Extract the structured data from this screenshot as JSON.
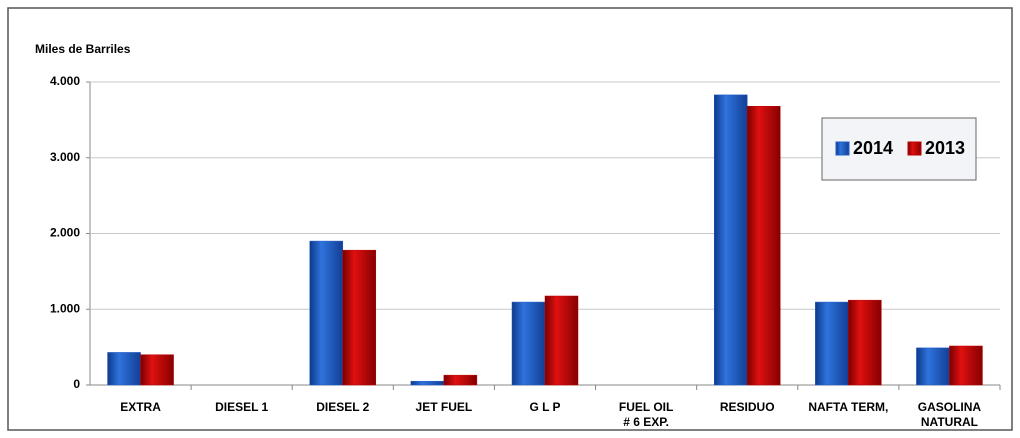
{
  "chart_data": {
    "type": "bar",
    "y_label": "Miles de Barriles",
    "categories": [
      "EXTRA",
      "DIESEL  1",
      "DIESEL 2",
      "JET FUEL",
      "G L P",
      "FUEL OIL\n# 6 EXP.",
      "RESIDUO",
      "NAFTA  TERM,",
      "GASOLINA\nNATURAL"
    ],
    "series": [
      {
        "name": "2014",
        "color": "#1f5cc4",
        "values": [
          430,
          0,
          1900,
          50,
          1095,
          0,
          3830,
          1095,
          490
        ]
      },
      {
        "name": "2013",
        "color": "#c00000",
        "values": [
          400,
          0,
          1780,
          130,
          1175,
          0,
          3680,
          1120,
          515
        ]
      }
    ],
    "ylim": [
      0,
      4000
    ],
    "yticks": [
      0,
      {
        "value": 1000,
        "label": "1.000"
      },
      {
        "value": 2000,
        "label": "2.000"
      },
      {
        "value": 3000,
        "label": "3.000"
      },
      {
        "value": 4000,
        "label": "4.000"
      }
    ],
    "grid": true,
    "legend": "upper right"
  }
}
